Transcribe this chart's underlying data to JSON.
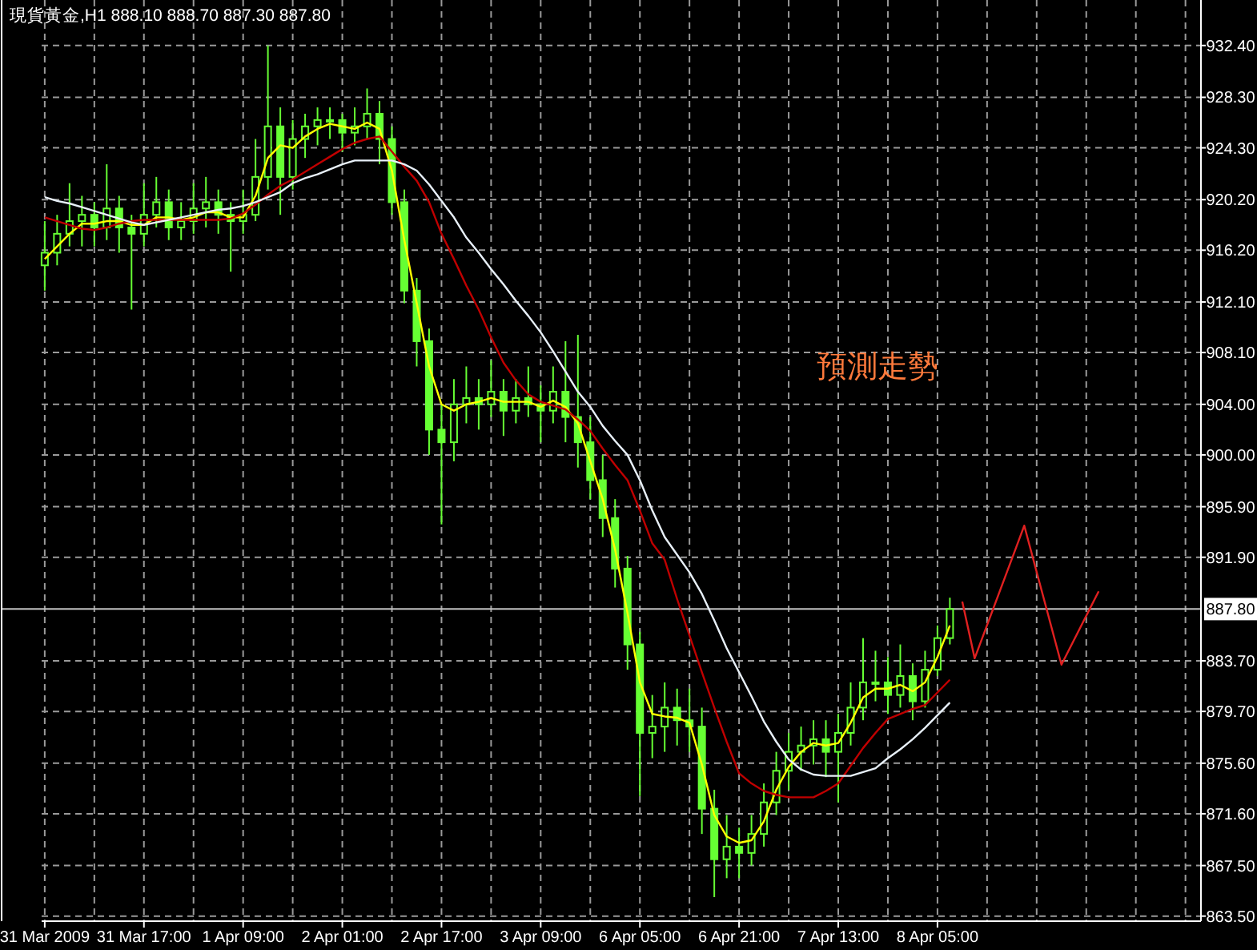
{
  "chart_data": {
    "type": "candlestick",
    "title": "現貨黃金,H1 888.10 888.70 887.30 887.80",
    "annotations": [
      "預測走勢"
    ],
    "categories": [
      "31 Mar 2009",
      null,
      null,
      null,
      null,
      null,
      null,
      null,
      "31 Mar 17:00",
      null,
      null,
      null,
      null,
      null,
      null,
      null,
      "1 Apr 09:00",
      null,
      null,
      null,
      null,
      null,
      null,
      null,
      "2 Apr 01:00",
      null,
      null,
      null,
      null,
      null,
      null,
      null,
      "2 Apr 17:00",
      null,
      null,
      null,
      null,
      null,
      null,
      null,
      "3 Apr 09:00",
      null,
      null,
      null,
      null,
      null,
      null,
      null,
      "6 Apr 05:00",
      null,
      null,
      null,
      null,
      null,
      null,
      null,
      "6 Apr 21:00",
      null,
      null,
      null,
      null,
      null,
      null,
      null,
      "7 Apr 13:00",
      null,
      null,
      null,
      null,
      null,
      null,
      null,
      "8 Apr 05:00",
      null,
      null,
      null,
      null,
      null,
      null,
      null,
      null,
      null,
      null,
      null,
      null,
      null,
      null,
      null,
      null,
      null,
      null,
      null,
      null,
      null
    ],
    "color": "#66ff33",
    "ohlc": [
      [
        915.0,
        918.5,
        913.0,
        916.0
      ],
      [
        916.0,
        919.0,
        915.0,
        917.5
      ],
      [
        917.5,
        921.5,
        916.5,
        918.5
      ],
      [
        918.5,
        920.5,
        916.5,
        919.0
      ],
      [
        919.0,
        920.0,
        916.5,
        918.0
      ],
      [
        918.0,
        923.0,
        917.0,
        919.5
      ],
      [
        919.5,
        920.5,
        916.0,
        918.0
      ],
      [
        918.0,
        919.0,
        911.5,
        917.5
      ],
      [
        917.5,
        921.5,
        916.5,
        919.0
      ],
      [
        919.0,
        922.0,
        918.0,
        920.0
      ],
      [
        920.0,
        921.0,
        917.0,
        918.0
      ],
      [
        918.0,
        920.0,
        917.0,
        918.5
      ],
      [
        918.5,
        921.5,
        917.5,
        919.5
      ],
      [
        919.5,
        922.0,
        918.0,
        920.0
      ],
      [
        920.0,
        921.0,
        917.5,
        919.0
      ],
      [
        919.0,
        920.0,
        914.5,
        918.5
      ],
      [
        918.5,
        921.0,
        917.5,
        919.0
      ],
      [
        919.0,
        925.0,
        918.5,
        922.0
      ],
      [
        922.0,
        932.4,
        921.0,
        926.0
      ],
      [
        926.0,
        927.5,
        919.0,
        922.0
      ],
      [
        922.0,
        926.5,
        921.0,
        925.0
      ],
      [
        925.0,
        927.0,
        923.5,
        926.0
      ],
      [
        926.0,
        927.5,
        924.5,
        926.5
      ],
      [
        926.5,
        927.5,
        925.0,
        926.5
      ],
      [
        926.5,
        927.0,
        924.0,
        925.5
      ],
      [
        925.5,
        927.5,
        924.5,
        926.0
      ],
      [
        926.0,
        929.0,
        925.0,
        927.0
      ],
      [
        927.0,
        928.0,
        923.0,
        925.0
      ],
      [
        925.0,
        926.0,
        919.0,
        920.0
      ],
      [
        920.0,
        921.0,
        912.0,
        913.0
      ],
      [
        913.0,
        914.0,
        907.0,
        909.0
      ],
      [
        909.0,
        910.0,
        900.0,
        902.0
      ],
      [
        902.0,
        904.0,
        894.5,
        901.0
      ],
      [
        901.0,
        906.0,
        899.5,
        904.0
      ],
      [
        904.0,
        907.0,
        902.5,
        904.5
      ],
      [
        904.5,
        906.0,
        902.0,
        904.0
      ],
      [
        904.0,
        907.5,
        903.0,
        905.0
      ],
      [
        905.0,
        906.0,
        901.5,
        903.5
      ],
      [
        903.5,
        906.0,
        902.5,
        904.5
      ],
      [
        904.5,
        907.0,
        903.0,
        904.0
      ],
      [
        904.0,
        905.5,
        901.0,
        903.5
      ],
      [
        903.5,
        907.0,
        902.5,
        905.0
      ],
      [
        905.0,
        909.0,
        901.0,
        903.0
      ],
      [
        903.0,
        909.5,
        899.0,
        901.0
      ],
      [
        901.0,
        903.0,
        896.5,
        898.0
      ],
      [
        898.0,
        900.0,
        893.5,
        895.0
      ],
      [
        895.0,
        896.5,
        889.5,
        891.0
      ],
      [
        891.0,
        892.0,
        883.0,
        885.0
      ],
      [
        885.0,
        886.0,
        873.0,
        878.0
      ],
      [
        878.0,
        881.0,
        876.0,
        878.5
      ],
      [
        878.5,
        882.0,
        876.5,
        880.0
      ],
      [
        880.0,
        881.5,
        877.0,
        879.0
      ],
      [
        879.0,
        881.5,
        876.5,
        878.5
      ],
      [
        878.5,
        880.0,
        870.0,
        872.0
      ],
      [
        872.0,
        873.5,
        865.0,
        868.0
      ],
      [
        868.0,
        871.5,
        866.5,
        869.0
      ],
      [
        869.0,
        870.5,
        866.5,
        868.5
      ],
      [
        868.5,
        871.5,
        867.5,
        870.0
      ],
      [
        870.0,
        874.0,
        869.0,
        872.5
      ],
      [
        872.5,
        876.5,
        871.5,
        875.0
      ],
      [
        875.0,
        878.0,
        873.5,
        876.5
      ],
      [
        876.5,
        878.5,
        875.0,
        877.0
      ],
      [
        877.0,
        879.0,
        875.5,
        877.5
      ],
      [
        877.5,
        879.0,
        874.5,
        876.5
      ],
      [
        876.5,
        879.5,
        872.5,
        878.0
      ],
      [
        878.0,
        882.0,
        877.0,
        880.0
      ],
      [
        880.0,
        885.5,
        879.0,
        882.0
      ],
      [
        882.0,
        884.5,
        880.5,
        882.0
      ],
      [
        882.0,
        884.0,
        879.5,
        881.0
      ],
      [
        881.0,
        885.0,
        880.0,
        882.5
      ],
      [
        882.5,
        883.5,
        879.0,
        880.5
      ],
      [
        880.5,
        884.5,
        880.0,
        883.0
      ],
      [
        883.0,
        886.5,
        882.5,
        885.5
      ],
      [
        885.5,
        888.7,
        885.0,
        887.8
      ],
      null,
      null,
      null,
      null,
      null,
      null,
      null,
      null,
      null,
      null,
      null,
      null,
      null,
      null,
      null,
      null,
      null,
      null,
      null,
      null
    ],
    "series": [
      {
        "type": "line",
        "color": "#ffff00",
        "values": [
          915.5,
          916.5,
          917.5,
          918.3,
          918.3,
          918.5,
          918.5,
          918.2,
          918.2,
          918.8,
          918.8,
          918.6,
          918.8,
          919.2,
          919.2,
          918.8,
          918.8,
          920.5,
          923.5,
          924.5,
          924.3,
          925.2,
          925.8,
          926.2,
          926.0,
          925.8,
          926.3,
          925.8,
          922.5,
          917,
          912,
          907,
          904,
          903.5,
          904,
          904.2,
          904.5,
          904.2,
          904.2,
          904.2,
          903.8,
          904.3,
          903.8,
          902.5,
          899.5,
          896.5,
          892.5,
          887.5,
          882,
          879.5,
          879.3,
          879.2,
          878.8,
          875.5,
          871.5,
          869.8,
          869.3,
          869.5,
          871,
          873.5,
          875.3,
          876.5,
          877.2,
          877,
          877.2,
          878.8,
          880.8,
          881.5,
          881.5,
          881.8,
          881.3,
          882,
          884,
          886.5,
          null,
          null,
          null,
          null,
          null,
          null,
          null,
          null,
          null,
          null,
          null,
          null,
          null,
          null,
          null,
          null,
          null,
          null,
          null,
          null
        ]
      },
      {
        "type": "line",
        "color": "#c00000",
        "values": [
          918.8,
          918.5,
          918.2,
          917.9,
          917.8,
          918.0,
          918.3,
          918.5,
          918.6,
          918.6,
          918.6,
          918.6,
          918.6,
          918.6,
          918.6,
          918.7,
          919.1,
          919.8,
          920.6,
          921.3,
          921.8,
          922.4,
          923.0,
          923.6,
          924.2,
          924.7,
          925.0,
          925.2,
          924,
          922.8,
          921.7,
          920,
          917.5,
          915.5,
          913.4,
          911.5,
          909.3,
          907.3,
          905.9,
          904.8,
          904.2,
          903.9,
          903.6,
          902.8,
          901.9,
          900.5,
          899.2,
          898,
          895.6,
          893,
          891.7,
          888.6,
          885.7,
          882.8,
          880,
          877.3,
          874.8,
          874,
          873.4,
          873.1,
          872.9,
          872.9,
          872.9,
          873.4,
          874,
          875.4,
          876.8,
          878,
          879.1,
          879.5,
          879.9,
          880.2,
          881.2,
          882.2,
          null,
          null,
          null,
          null,
          null,
          null,
          null,
          null,
          null,
          null,
          null,
          null,
          null,
          null,
          null,
          null,
          null,
          null,
          null,
          null
        ]
      },
      {
        "type": "line",
        "color": "#e8f0f8",
        "values": [
          920.4,
          920.1,
          919.9,
          919.6,
          919.3,
          919.0,
          918.7,
          918.4,
          918.2,
          918.4,
          918.6,
          918.8,
          919.0,
          919.2,
          919.4,
          919.5,
          919.7,
          920.0,
          920.4,
          920.8,
          921.5,
          921.9,
          922.2,
          922.6,
          923.0,
          923.3,
          923.3,
          923.3,
          923.3,
          923.0,
          922.5,
          921.4,
          920.1,
          918.8,
          917.2,
          916.0,
          914.7,
          913.5,
          912.2,
          911,
          909.7,
          908.2,
          906.6,
          905.0,
          903.8,
          902.3,
          901.1,
          900.0,
          898.0,
          895.6,
          893.5,
          892.1,
          890.7,
          889,
          886.9,
          884.7,
          882.8,
          880.9,
          878.9,
          877.3,
          875.9,
          875.1,
          874.7,
          874.6,
          874.6,
          874.6,
          874.9,
          875.2,
          876,
          876.7,
          877.5,
          878.4,
          879.4,
          880.4,
          null,
          null,
          null,
          null,
          null,
          null,
          null,
          null,
          null,
          null,
          null,
          null,
          null,
          null,
          null,
          null,
          null,
          null,
          null,
          null
        ]
      },
      {
        "type": "line",
        "color": "#e02020",
        "values": [
          null,
          null,
          null,
          null,
          null,
          null,
          null,
          null,
          null,
          null,
          null,
          null,
          null,
          null,
          null,
          null,
          null,
          null,
          null,
          null,
          null,
          null,
          null,
          null,
          null,
          null,
          null,
          null,
          null,
          null,
          null,
          null,
          null,
          null,
          null,
          null,
          null,
          null,
          null,
          null,
          null,
          null,
          null,
          null,
          null,
          null,
          null,
          null,
          null,
          null,
          null,
          null,
          null,
          null,
          null,
          null,
          null,
          null,
          null,
          null,
          null,
          null,
          null,
          null,
          null,
          null,
          null,
          null,
          null,
          null,
          null,
          null,
          null,
          null,
          888.4,
          883.9,
          null,
          null,
          null,
          894.4,
          null,
          null,
          883.4,
          null,
          null,
          889.2,
          null,
          null,
          null,
          null,
          null,
          null,
          null,
          null
        ]
      }
    ],
    "ylim": [
      863.1,
      936.0
    ],
    "yticks": [
      {
        "value": 932.4,
        "label": "932.40"
      },
      {
        "value": 928.3,
        "label": "928.30"
      },
      {
        "value": 924.3,
        "label": "924.30"
      },
      {
        "value": 920.2,
        "label": "920.20"
      },
      {
        "value": 916.2,
        "label": "916.20"
      },
      {
        "value": 912.1,
        "label": "912.10"
      },
      {
        "value": 908.1,
        "label": "908.10"
      },
      {
        "value": 904.0,
        "label": "904.00"
      },
      {
        "value": 900.0,
        "label": "900.00"
      },
      {
        "value": 895.9,
        "label": "895.90"
      },
      {
        "value": 891.9,
        "label": "891.90"
      },
      {
        "value": 883.7,
        "label": "883.70"
      },
      {
        "value": 879.7,
        "label": "879.70"
      },
      {
        "value": 875.6,
        "label": "875.60"
      },
      {
        "value": 871.6,
        "label": "871.60"
      },
      {
        "value": 867.5,
        "label": "867.50"
      },
      {
        "value": 863.5,
        "label": "863.50"
      }
    ],
    "ref_lines": [
      {
        "axis": "y",
        "value": 887.8,
        "label": "887.80",
        "color": "#c0c0c0"
      }
    ],
    "grid": true
  }
}
